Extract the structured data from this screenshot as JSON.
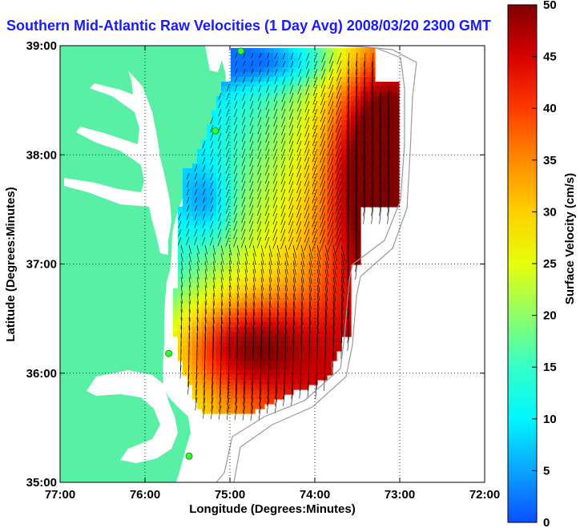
{
  "title": "Southern Mid-Atlantic Raw Velocities (1 Day Avg) 2008/03/20 2300 GMT",
  "map": {
    "xlabel": "Longitude (Degrees:Minutes)",
    "ylabel": "Latitude (Degrees:Minutes)",
    "x_ticks": [
      {
        "value": -77,
        "label": "77:00"
      },
      {
        "value": -76,
        "label": "76:00"
      },
      {
        "value": -75,
        "label": "75:00"
      },
      {
        "value": -74,
        "label": "74:00"
      },
      {
        "value": -73,
        "label": "73:00"
      },
      {
        "value": -72,
        "label": "72:00"
      }
    ],
    "y_ticks": [
      {
        "value": 39,
        "label": "39:00"
      },
      {
        "value": 38,
        "label": "38:00"
      },
      {
        "value": 37,
        "label": "37:00"
      },
      {
        "value": 36,
        "label": "36:00"
      },
      {
        "value": 35,
        "label": "35:00"
      }
    ],
    "xlim": [
      -77,
      -72
    ],
    "ylim": [
      35,
      39
    ],
    "land_color": "#59f0a6",
    "grid": "dotted"
  },
  "colorbar": {
    "label": "Surface Velocity (cm/s)",
    "range": [
      0,
      50
    ],
    "ticks": [
      "0",
      "5",
      "10",
      "15",
      "20",
      "25",
      "30",
      "35",
      "40",
      "45",
      "50"
    ],
    "colormap": [
      "#0a4fff",
      "#0aa4ff",
      "#00f7ff",
      "#34ffc8",
      "#8fff68",
      "#e6ff0a",
      "#ffd000",
      "#ff8a00",
      "#ff3a00",
      "#d80000",
      "#800000"
    ]
  },
  "stations": [
    {
      "name": "station",
      "lon": -74.87,
      "lat": 38.95
    },
    {
      "name": "station",
      "lon": -75.17,
      "lat": 38.22
    },
    {
      "name": "station",
      "lon": -75.72,
      "lat": 36.18
    },
    {
      "name": "station",
      "lon": -75.48,
      "lat": 35.24
    }
  ]
}
